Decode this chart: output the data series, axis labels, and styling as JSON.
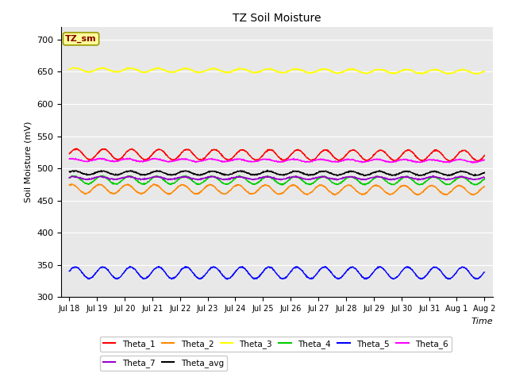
{
  "title": "TZ Soil Moisture",
  "xlabel": "Time",
  "ylabel": "Soil Moisture (mV)",
  "ylim": [
    300,
    720
  ],
  "yticks": [
    300,
    350,
    400,
    450,
    500,
    550,
    600,
    650,
    700
  ],
  "plot_bg": "#e8e8e8",
  "fig_bg": "#ffffff",
  "n_points": 1440,
  "series_order": [
    "Theta_1",
    "Theta_2",
    "Theta_3",
    "Theta_4",
    "Theta_5",
    "Theta_6",
    "Theta_7",
    "Theta_avg"
  ],
  "series": {
    "Theta_1": {
      "color": "#ff0000",
      "mean": 522,
      "amp": 8,
      "freq": 1.0,
      "phase": 0.0,
      "trend": -0.15
    },
    "Theta_2": {
      "color": "#ff8800",
      "mean": 468,
      "amp": 7,
      "freq": 1.0,
      "phase": 1.0,
      "trend": -0.12
    },
    "Theta_3": {
      "color": "#ffff00",
      "mean": 653,
      "amp": 3,
      "freq": 1.0,
      "phase": 0.3,
      "trend": -0.2
    },
    "Theta_4": {
      "color": "#00cc00",
      "mean": 482,
      "amp": 6,
      "freq": 1.0,
      "phase": 0.5,
      "trend": -0.08
    },
    "Theta_5": {
      "color": "#0000ff",
      "mean": 338,
      "amp": 9,
      "freq": 1.0,
      "phase": 0.2,
      "trend": -0.02
    },
    "Theta_6": {
      "color": "#ff00ff",
      "mean": 513,
      "amp": 2,
      "freq": 1.0,
      "phase": 0.9,
      "trend": -0.1
    },
    "Theta_7": {
      "color": "#9900cc",
      "mean": 485,
      "amp": 2,
      "freq": 1.0,
      "phase": 0.7,
      "trend": -0.01
    },
    "Theta_avg": {
      "color": "#000000",
      "mean": 493,
      "amp": 3,
      "freq": 1.0,
      "phase": 0.4,
      "trend": -0.05
    }
  },
  "annotation_text": "TZ_sm",
  "annotation_bg": "#ffff99",
  "annotation_border": "#999900",
  "annotation_text_color": "#880000",
  "tick_labels": [
    "Jul 18",
    "Jul 19",
    "Jul 20",
    "Jul 21",
    "Jul 22",
    "Jul 23",
    "Jul 24",
    "Jul 25",
    "Jul 26",
    "Jul 27",
    "Jul 28",
    "Jul 29",
    "Jul 30",
    "Jul 31",
    "Aug 1",
    "Aug 2"
  ],
  "legend_row1": [
    "Theta_1",
    "Theta_2",
    "Theta_3",
    "Theta_4",
    "Theta_5",
    "Theta_6"
  ],
  "legend_row2": [
    "Theta_7",
    "Theta_avg"
  ]
}
